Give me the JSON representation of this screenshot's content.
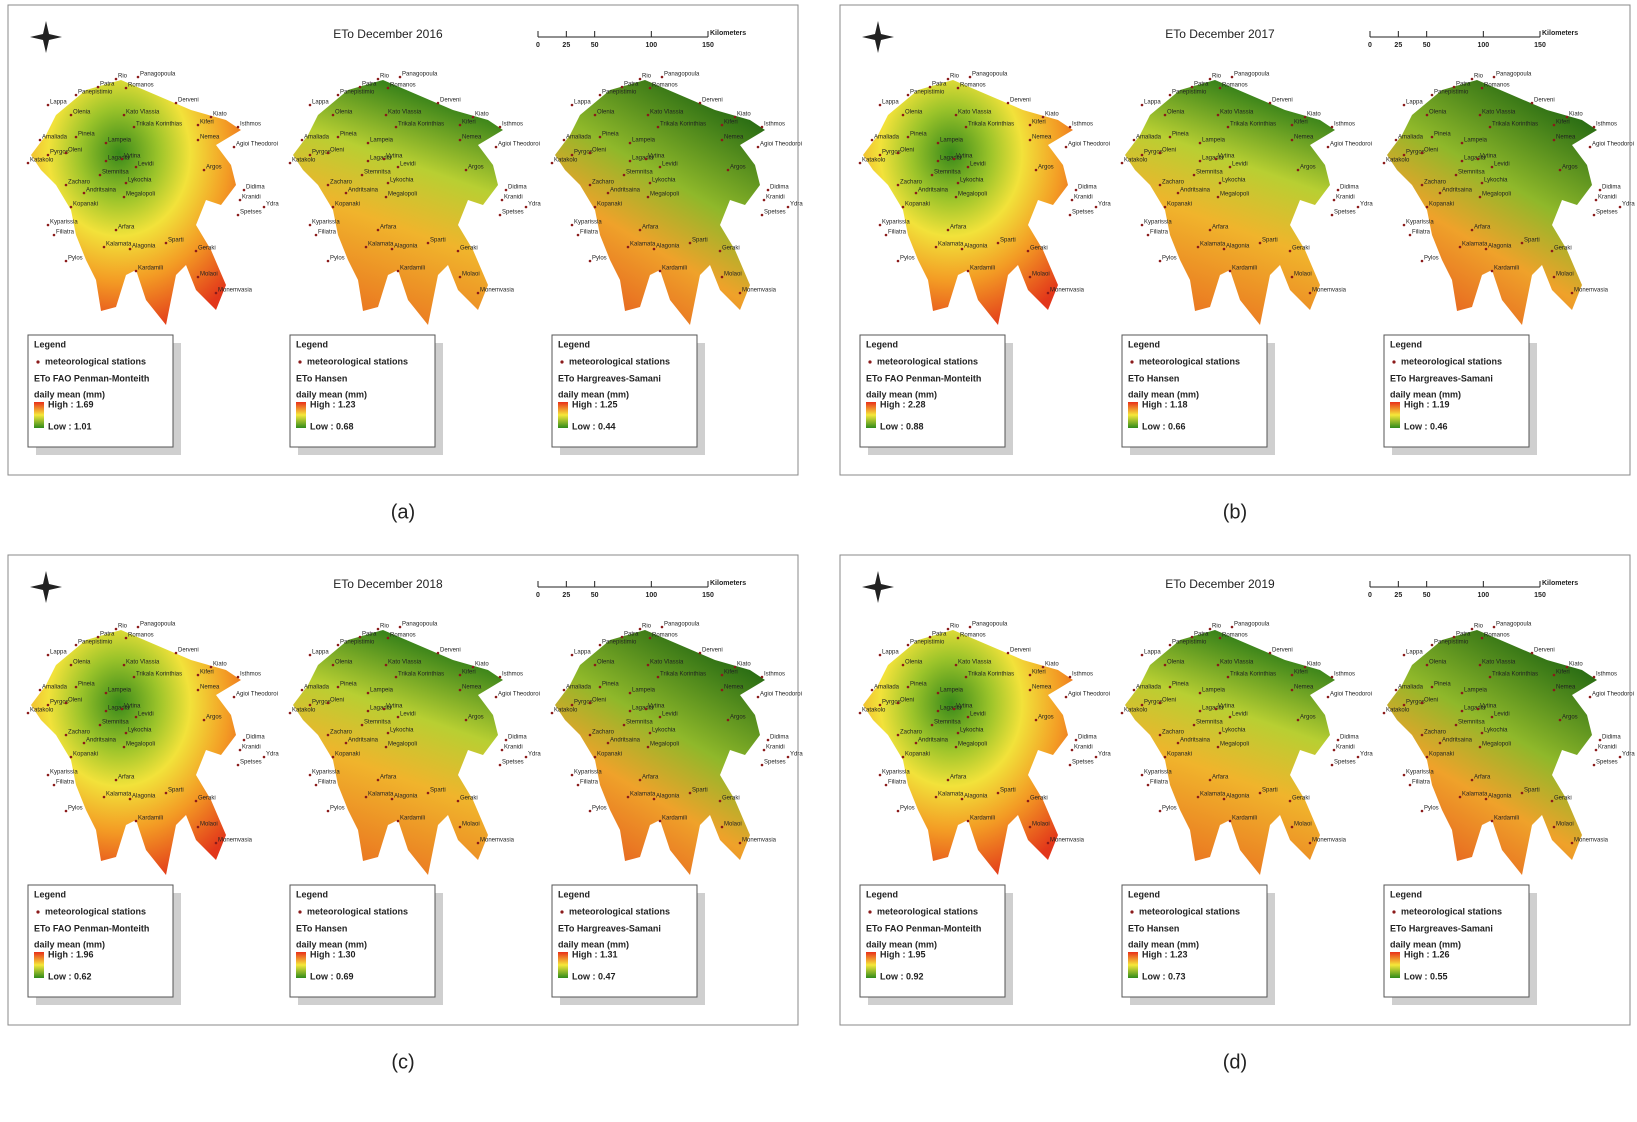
{
  "stations": [
    "Rio",
    "Panagopoula",
    "Patra",
    "Romanos",
    "Panepistimio",
    "Derveni",
    "Lappa",
    "Olenia",
    "Kato Vlassia",
    "Kiato",
    "Kiferi",
    "Isthmos",
    "Amaliada",
    "Pineia",
    "Trikala Korinthias",
    "Lampeia",
    "Nemea",
    "Agioi Theodoroi",
    "Katakolo",
    "Pyrgos",
    "Oleni",
    "Lagadia",
    "Vytina",
    "Levidi",
    "Argos",
    "Stemnitsa",
    "Zacharo",
    "Lykochia",
    "Andritsaina",
    "Megalopoli",
    "Kopanaki",
    "Didima",
    "Kranidi",
    "Ydra",
    "Spetses",
    "Kyparissia",
    "Filiatra",
    "Arfara",
    "Kalamata",
    "Alagonia",
    "Sparti",
    "Geraki",
    "Pylos",
    "Kardamili",
    "Molaoi",
    "Monemvasia"
  ],
  "panels": [
    {
      "label": "(a)",
      "title": "ETo December 2016",
      "scale": {
        "ticks": [
          0,
          25,
          50,
          100,
          150
        ],
        "unit": "Kilometers"
      },
      "maps": [
        {
          "legend_title": "Legend",
          "symbol_label": "meteorological stations",
          "method": "ETo FAO Penman-Monteith",
          "units": "daily mean (mm)",
          "high": "High : 1.69",
          "low": "Low : 1.01"
        },
        {
          "legend_title": "Legend",
          "symbol_label": "meteorological stations",
          "method": "ETo Hansen",
          "units": "daily mean (mm)",
          "high": "High : 1.23",
          "low": "Low : 0.68"
        },
        {
          "legend_title": "Legend",
          "symbol_label": "meteorological stations",
          "method": "ETo Hargreaves-Samani",
          "units": "daily mean (mm)",
          "high": "High : 1.25",
          "low": "Low : 0.44"
        }
      ]
    },
    {
      "label": "(b)",
      "title": "ETo December 2017",
      "scale": {
        "ticks": [
          0,
          25,
          50,
          100,
          150
        ],
        "unit": "Kilometers"
      },
      "maps": [
        {
          "legend_title": "Legend",
          "symbol_label": "meteorological stations",
          "method": "ETo FAO Penman-Monteith",
          "units": "daily mean (mm)",
          "high": "High : 2.28",
          "low": "Low : 0.88"
        },
        {
          "legend_title": "Legend",
          "symbol_label": "meteorological stations",
          "method": "ETo Hansen",
          "units": "daily mean (mm)",
          "high": "High : 1.18",
          "low": "Low : 0.66"
        },
        {
          "legend_title": "Legend",
          "symbol_label": "meteorological stations",
          "method": "ETo Hargreaves-Samani",
          "units": "daily mean (mm)",
          "high": "High : 1.19",
          "low": "Low : 0.46"
        }
      ]
    },
    {
      "label": "(c)",
      "title": "ETo December 2018",
      "scale": {
        "ticks": [
          0,
          25,
          50,
          100,
          150
        ],
        "unit": "Kilometers"
      },
      "maps": [
        {
          "legend_title": "Legend",
          "symbol_label": "meteorological stations",
          "method": "ETo FAO Penman-Monteith",
          "units": "daily mean (mm)",
          "high": "High : 1.96",
          "low": "Low : 0.62"
        },
        {
          "legend_title": "Legend",
          "symbol_label": "meteorological stations",
          "method": "ETo Hansen",
          "units": "daily mean (mm)",
          "high": "High : 1.30",
          "low": "Low : 0.69"
        },
        {
          "legend_title": "Legend",
          "symbol_label": "meteorological stations",
          "method": "ETo Hargreaves-Samani",
          "units": "daily mean (mm)",
          "high": "High : 1.31",
          "low": "Low : 0.47"
        }
      ]
    },
    {
      "label": "(d)",
      "title": "ETo December 2019",
      "scale": {
        "ticks": [
          0,
          25,
          50,
          100,
          150
        ],
        "unit": "Kilometers"
      },
      "maps": [
        {
          "legend_title": "Legend",
          "symbol_label": "meteorological stations",
          "method": "ETo FAO Penman-Monteith",
          "units": "daily mean (mm)",
          "high": "High : 1.95",
          "low": "Low : 0.92"
        },
        {
          "legend_title": "Legend",
          "symbol_label": "meteorological stations",
          "method": "ETo Hansen",
          "units": "daily mean (mm)",
          "high": "High : 1.23",
          "low": "Low : 0.73"
        },
        {
          "legend_title": "Legend",
          "symbol_label": "meteorological stations",
          "method": "ETo Hargreaves-Samani",
          "units": "daily mean (mm)",
          "high": "High : 1.26",
          "low": "Low : 0.55"
        }
      ]
    }
  ]
}
